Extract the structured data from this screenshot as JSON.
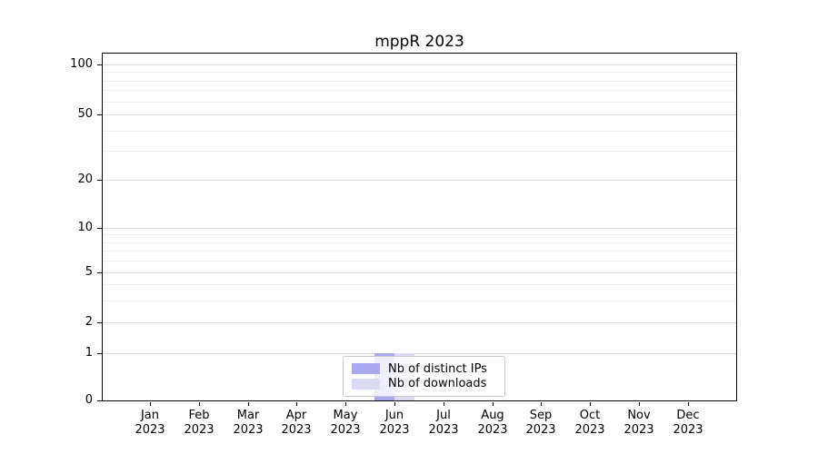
{
  "chart_data": {
    "type": "bar",
    "title": "mppR 2023",
    "categories": [
      "Jan 2023",
      "Feb 2023",
      "Mar 2023",
      "Apr 2023",
      "May 2023",
      "Jun 2023",
      "Jul 2023",
      "Aug 2023",
      "Sep 2023",
      "Oct 2023",
      "Nov 2023",
      "Dec 2023"
    ],
    "series": [
      {
        "name": "Nb of distinct IPs",
        "color": "#a9a9ef",
        "values": [
          0,
          0,
          0,
          0,
          0,
          1,
          0,
          0,
          0,
          0,
          0,
          0
        ]
      },
      {
        "name": "Nb of downloads",
        "color": "#dadaf5",
        "values": [
          0,
          0,
          0,
          0,
          0,
          1,
          0,
          0,
          0,
          0,
          0,
          0
        ]
      }
    ],
    "xlabel": "",
    "ylabel": "",
    "y_axis": {
      "scale": "symlog",
      "ylim": [
        0,
        115
      ],
      "tick_values": [
        100,
        50,
        20,
        10,
        5,
        2,
        1,
        0
      ],
      "tick_labels": [
        "100",
        "50",
        "20",
        "10",
        "5",
        "2",
        "1",
        "0"
      ],
      "minor_tick_values": [
        90,
        80,
        70,
        60,
        40,
        30,
        9,
        8,
        7,
        6,
        4,
        3
      ],
      "anchors": [
        [
          0,
          1.0
        ],
        [
          1,
          0.8639
        ],
        [
          2,
          0.7749
        ],
        [
          5,
          0.6309
        ],
        [
          10,
          0.5026
        ],
        [
          20,
          0.3639
        ],
        [
          50,
          0.1754
        ],
        [
          100,
          0.0314
        ]
      ]
    },
    "grid": "horizontal",
    "legend": {
      "position": "lower center",
      "entries": [
        "Nb of distinct IPs",
        "Nb of downloads"
      ]
    },
    "colors": {
      "major_grid": "#d9d9d9",
      "minor_grid": "#efefef",
      "spine": "#000000",
      "background": "#ffffff"
    }
  }
}
